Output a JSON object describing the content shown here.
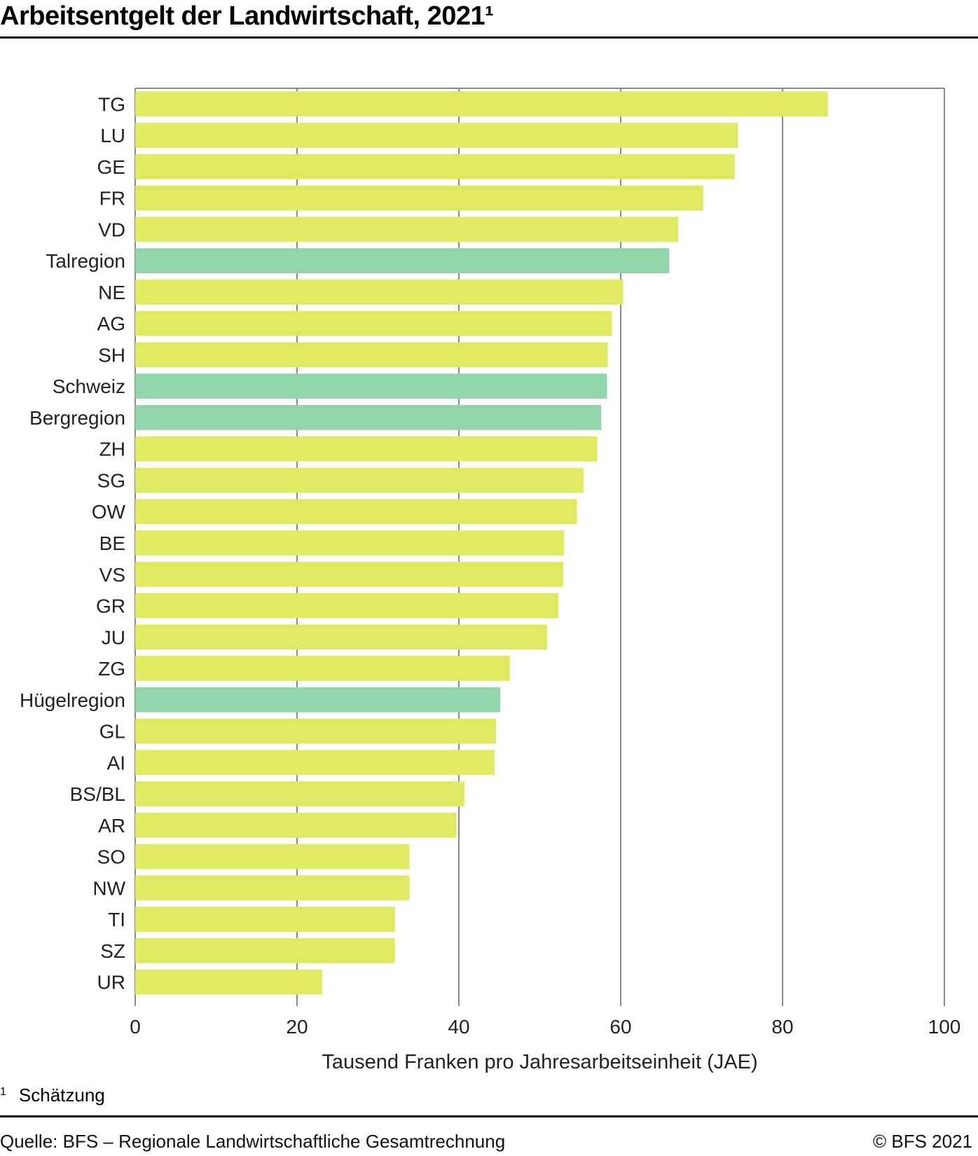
{
  "title": "Arbeitsentgelt der Landwirtschaft, 2021¹",
  "footnote": {
    "marker": "1",
    "text": "Schätzung"
  },
  "source": "Quelle: BFS – Regionale Landwirtschaftliche Gesamtrechnung",
  "copyright": "© BFS 2021",
  "colors": {
    "canton": "#e0e962",
    "region": "#93d5aa"
  },
  "chart_data": {
    "type": "bar",
    "orientation": "horizontal",
    "title": "Arbeitsentgelt der Landwirtschaft, 2021¹",
    "xlabel": "Tausend Franken pro Jahresarbeitseinheit (JAE)",
    "ylabel": "",
    "xlim": [
      0,
      100
    ],
    "xticks": [
      "0",
      "20",
      "40",
      "60",
      "80",
      "100"
    ],
    "grid": true,
    "categories": [
      "TG",
      "LU",
      "GE",
      "FR",
      "VD",
      "Talregion",
      "NE",
      "AG",
      "SH",
      "Schweiz",
      "Bergregion",
      "ZH",
      "SG",
      "OW",
      "BE",
      "VS",
      "GR",
      "JU",
      "ZG",
      "Hügelregion",
      "GL",
      "AI",
      "BS/BL",
      "AR",
      "SO",
      "NW",
      "TI",
      "SZ",
      "UR"
    ],
    "values": [
      85.6,
      74.5,
      74.1,
      70.2,
      67.1,
      66.0,
      60.3,
      58.9,
      58.4,
      58.3,
      57.6,
      57.1,
      55.4,
      54.6,
      53.0,
      52.9,
      52.3,
      50.9,
      46.3,
      45.1,
      44.6,
      44.4,
      40.7,
      39.7,
      33.9,
      33.9,
      32.1,
      32.1,
      23.1
    ],
    "category_type": [
      "canton",
      "canton",
      "canton",
      "canton",
      "canton",
      "region",
      "canton",
      "canton",
      "canton",
      "region",
      "region",
      "canton",
      "canton",
      "canton",
      "canton",
      "canton",
      "canton",
      "canton",
      "canton",
      "region",
      "canton",
      "canton",
      "canton",
      "canton",
      "canton",
      "canton",
      "canton",
      "canton",
      "canton"
    ]
  }
}
